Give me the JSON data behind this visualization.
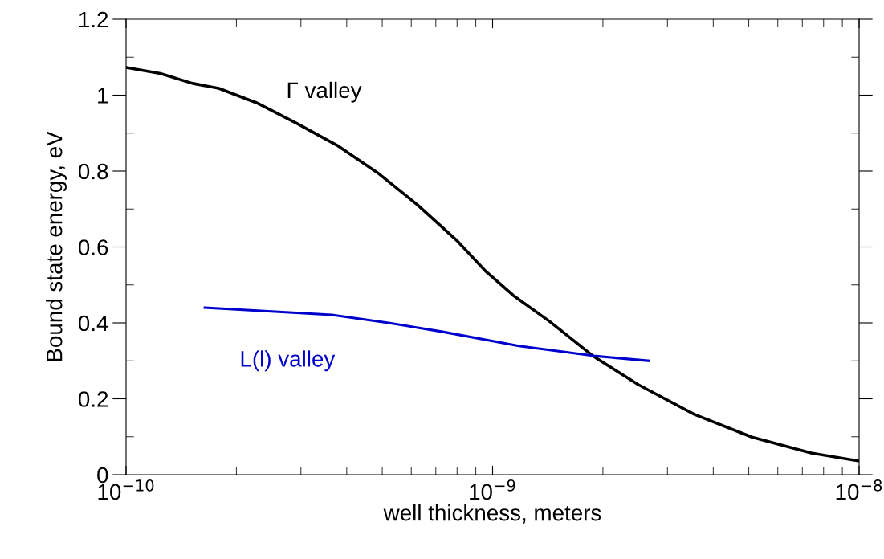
{
  "chart_data": {
    "type": "line",
    "xlabel": "well thickness, meters",
    "ylabel": "Bound state energy, eV",
    "log": "x",
    "xlim": [
      1e-10,
      1e-08
    ],
    "ylim": [
      0,
      1.2
    ],
    "xticks": [
      {
        "value": 1e-10,
        "label": "10$^{−10}$"
      },
      {
        "value": 1e-09,
        "label": "10$^{−9}$"
      },
      {
        "value": 1e-08,
        "label": "10$^{−8}$"
      }
    ],
    "yticks": [
      0,
      0.2,
      0.4,
      0.6,
      0.8,
      1,
      1.2
    ],
    "grid": false,
    "legend": false,
    "series": [
      {
        "name": "Γ valley",
        "color": "#000000",
        "x": [
          1e-10,
          1.24e-10,
          1.52e-10,
          1.79e-10,
          2.27e-10,
          2.93e-10,
          3.76e-10,
          4.85e-10,
          6.24e-10,
          8.03e-10,
          9.6e-10,
          1.14e-09,
          1.43e-09,
          1.89e-09,
          2.5e-09,
          3.55e-09,
          5.1e-09,
          7.4e-09,
          1e-08
        ],
        "values": [
          1.073,
          1.057,
          1.031,
          1.018,
          0.98,
          0.925,
          0.868,
          0.796,
          0.711,
          0.615,
          0.535,
          0.472,
          0.404,
          0.311,
          0.237,
          0.159,
          0.099,
          0.057,
          0.036
        ]
      },
      {
        "name": "L(l) valley",
        "color": "#0000cc",
        "x": [
          1.64e-10,
          3.64e-10,
          5.2e-10,
          7.26e-10,
          1.18e-09,
          1.89e-09,
          2.67e-09
        ],
        "values": [
          0.44,
          0.421,
          0.4,
          0.377,
          0.339,
          0.313,
          0.3
        ]
      }
    ]
  }
}
